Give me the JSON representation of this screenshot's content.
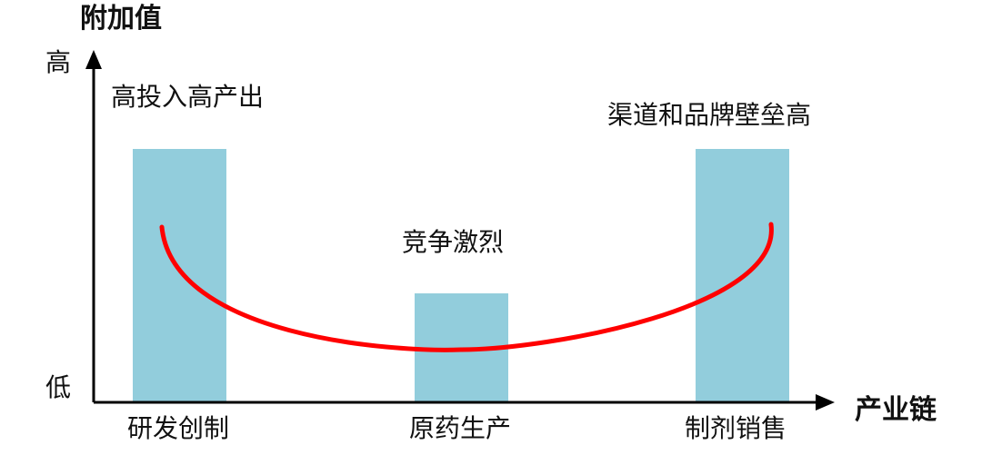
{
  "y_axis": {
    "title": "附加值",
    "high_label": "高",
    "low_label": "低"
  },
  "x_axis": {
    "title": "产业链"
  },
  "chart_data": {
    "type": "bar",
    "categories": [
      "研发创制",
      "原药生产",
      "制剂销售"
    ],
    "values": [
      1.0,
      0.43,
      1.0
    ],
    "annotations": [
      "高投入高产出",
      "竞争激烈",
      "渠道和品牌壁垒高"
    ],
    "curve": "smile",
    "colors": {
      "bar": "#92CDDC",
      "curve": "#FF0000",
      "axis": "#000000"
    }
  }
}
